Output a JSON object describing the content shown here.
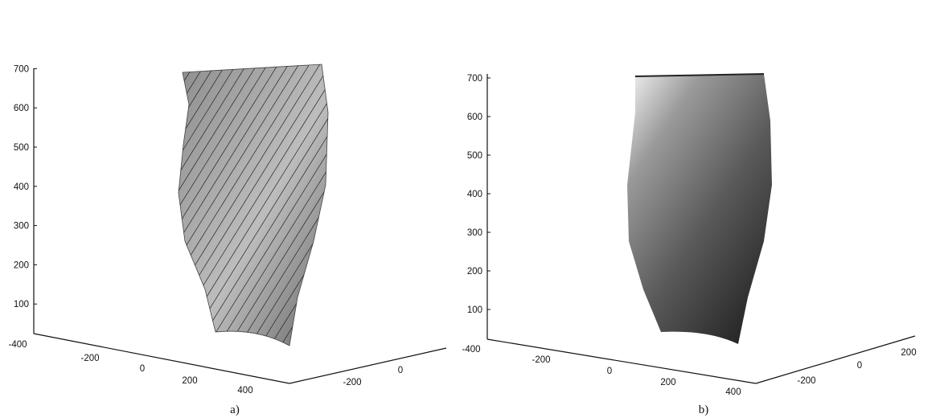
{
  "chart_data": [
    {
      "type": "surface",
      "panel_label": "a)",
      "rendering": "gray shaded surface with diagonal mesh lines",
      "z_ticks": [
        "100",
        "200",
        "300",
        "400",
        "500",
        "600",
        "700"
      ],
      "x_ticks": [
        "-400",
        "-200",
        "0",
        "200",
        "400"
      ],
      "y_ticks": [
        "-200",
        "0"
      ],
      "colors": {
        "surface": "#9a9a9a",
        "mesh": "#222222"
      }
    },
    {
      "type": "surface",
      "panel_label": "b)",
      "rendering": "smooth gray-gradient shaded surface",
      "z_ticks": [
        "100",
        "200",
        "300",
        "400",
        "500",
        "600",
        "700"
      ],
      "x_ticks": [
        "-400",
        "-200",
        "0",
        "200",
        "400"
      ],
      "y_ticks": [
        "-200",
        "0",
        "200"
      ],
      "colors": {
        "surface_light": "#d8d8d8",
        "surface_dark": "#2a2a2a"
      }
    }
  ]
}
